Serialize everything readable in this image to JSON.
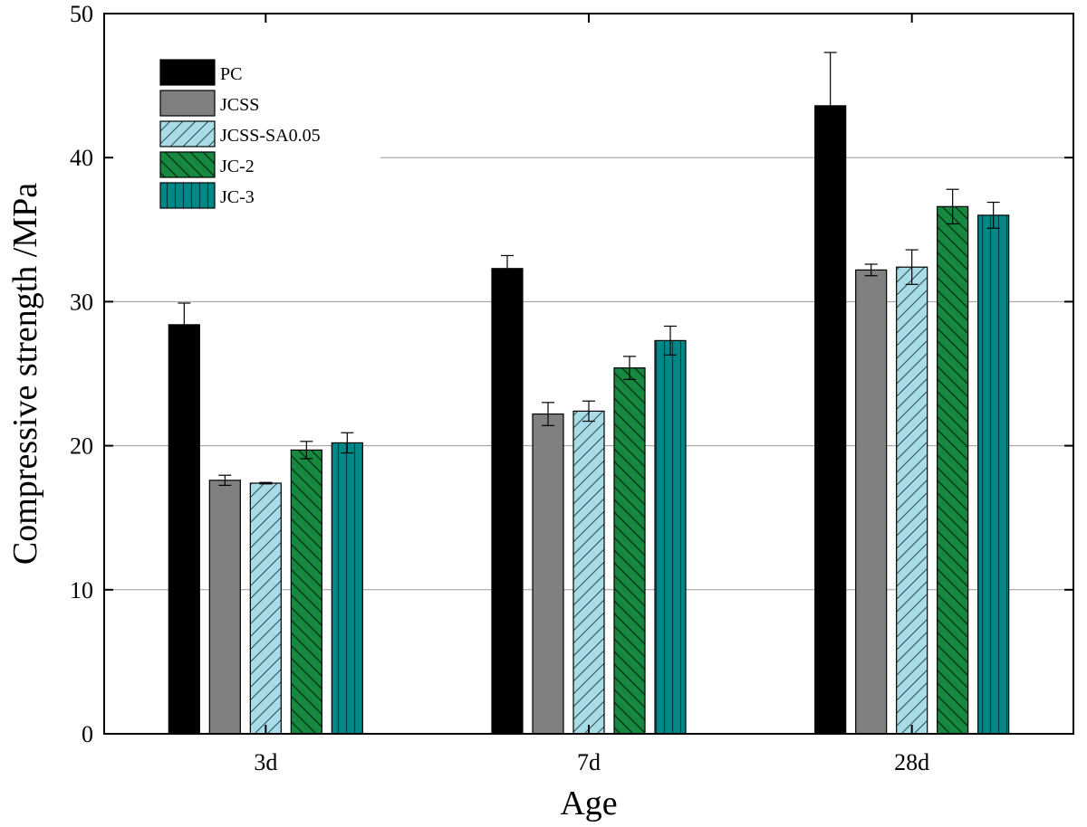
{
  "chart_data": {
    "type": "bar",
    "xlabel": "Age",
    "ylabel": "Compressive strength /MPa",
    "ylim": [
      0,
      50
    ],
    "yticks": [
      0,
      10,
      20,
      30,
      40,
      50
    ],
    "categories": [
      "3d",
      "7d",
      "28d"
    ],
    "grid": "horizontal",
    "legend_position": "top-left",
    "series": [
      {
        "name": "PC",
        "color": "#000000",
        "pattern": "solid",
        "values": [
          28.4,
          32.3,
          43.6
        ],
        "errors": [
          1.5,
          0.9,
          3.7
        ]
      },
      {
        "name": "JCSS",
        "color": "#808080",
        "pattern": "solid",
        "values": [
          17.6,
          22.2,
          32.2
        ],
        "errors": [
          0.35,
          0.8,
          0.4
        ]
      },
      {
        "name": "JCSS-SA0.05",
        "color": "#a8dde8",
        "pattern": "diagonal-forward",
        "values": [
          17.4,
          22.4,
          32.4
        ],
        "errors": [
          0.05,
          0.7,
          1.2
        ]
      },
      {
        "name": "JC-2",
        "color": "#168840",
        "pattern": "diagonal-back",
        "values": [
          19.7,
          25.4,
          36.6
        ],
        "errors": [
          0.6,
          0.8,
          1.2
        ]
      },
      {
        "name": "JC-3",
        "color": "#008888",
        "pattern": "vertical",
        "values": [
          20.2,
          27.3,
          36.0
        ],
        "errors": [
          0.7,
          1.0,
          0.9
        ]
      }
    ]
  }
}
